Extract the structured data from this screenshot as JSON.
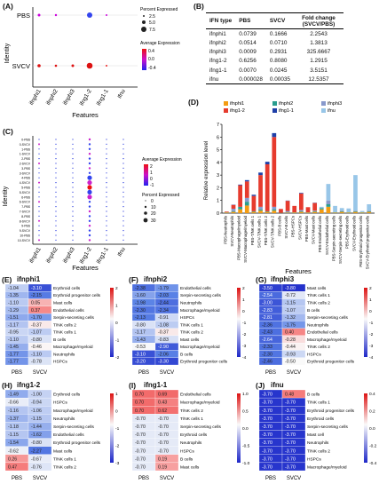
{
  "labels": {
    "A": "(A)",
    "B": "(B)",
    "C": "(C)",
    "D": "(D)",
    "E": "(E)",
    "F": "(F)",
    "G": "(G)",
    "H": "(H)",
    "I": "(I)",
    "J": "(J)"
  },
  "genes": [
    "ifnphi1",
    "ifnphi2",
    "ifnphi3",
    "ifng1-2",
    "ifng1-1",
    "ifnu"
  ],
  "panelA": {
    "y_axis_label": "Identity",
    "x_axis_label": "Features",
    "rows": [
      "PBS",
      "SVCV"
    ],
    "legend_pct_title": "Percent Expressed",
    "legend_pct_values": [
      "2.5",
      "5.0",
      "7.5"
    ],
    "legend_avg_title": "Average Expression",
    "legend_avg_ticks": [
      "0.4",
      "0.0",
      "-0.4"
    ]
  },
  "table_B": {
    "headers": [
      "IFN type",
      "PBS",
      "SVCV",
      "Fold change (SVCV/PBS)"
    ],
    "rows": [
      [
        "ifnphi1",
        "0.0739",
        "0.1666",
        "2.2543"
      ],
      [
        "ifnphi2",
        "0.0514",
        "0.0710",
        "1.3813"
      ],
      [
        "ifnphi3",
        "0.0009",
        "0.2931",
        "325.6667"
      ],
      [
        "ifng1-2",
        "0.6256",
        "0.8080",
        "1.2915"
      ],
      [
        "ifng1-1",
        "0.0070",
        "0.0245",
        "3.5151"
      ],
      [
        "ifnu",
        "0.000028",
        "0.00035",
        "12.5357"
      ]
    ]
  },
  "panelC": {
    "y_axis_label": "Identity",
    "x_axis_label": "Features",
    "legend_avg_title": "Average Expression",
    "legend_avg_ticks": [
      "2",
      "1",
      "0",
      "-1"
    ],
    "legend_pct_title": "Percent Expressed",
    "legend_pct_values": [
      "0",
      "10",
      "20",
      "30"
    ]
  },
  "chart_data": {
    "type": "bar",
    "ylabel": "Relative expression level",
    "xlabel": "Features",
    "ylim": [
      0,
      7
    ],
    "yticks": [
      0,
      1,
      2,
      3,
      4,
      5,
      6,
      7
    ],
    "legend": [
      "ifnphi1",
      "ifnphi2",
      "ifnphi3",
      "ifng1-2",
      "ifng1-1",
      "ifnu"
    ],
    "categories": [
      "PBS-Neutrophils",
      "SVCV-Neutrophils",
      "PBS-Macrophage/myeloid",
      "SVCV-Macrophage/myeloid",
      "PBS-T/NK cells 1",
      "SVCV-T/NK cells 1",
      "PBS-T/NK cells 2",
      "SVCV-T/NK cells 2",
      "PBS-B cells",
      "SVCV-B cells",
      "PBS-HSPCs",
      "SVCV-HSPCs",
      "PBS-Mast cells",
      "SVCV-Mast cells",
      "PBS-Endothelial cells",
      "SVCV-Endothelial cells",
      "PBS-Serpin-secreting cells",
      "SVCV-Serpin-secreting cells",
      "PBS-Erythroid cells",
      "SVCV-Erythroid cells",
      "PBS-Erythroid progenitor cells",
      "SVCV-Erythroid progenitor cells"
    ],
    "series": [
      {
        "name": "ifnphi1",
        "values": [
          0.05,
          0.1,
          0.3,
          0.6,
          0.1,
          0.2,
          0.1,
          0.2,
          0.02,
          0.05,
          0.05,
          0.1,
          0.05,
          0.1,
          0.3,
          0.5,
          0.05,
          0.1,
          0.05,
          0.1,
          0.05,
          0.1
        ]
      },
      {
        "name": "ifnphi2",
        "values": [
          0.02,
          0.05,
          0.2,
          0.3,
          0.05,
          0.1,
          0.05,
          0.1,
          0.01,
          0.02,
          0.02,
          0.05,
          0.02,
          0.05,
          0.1,
          0.2,
          0.02,
          0.05,
          0.02,
          0.05,
          0.02,
          0.05
        ]
      },
      {
        "name": "ifnphi3",
        "values": [
          0,
          0.2,
          0,
          0.3,
          0,
          0.2,
          0,
          0.2,
          0,
          0.1,
          0,
          0.1,
          0,
          0.05,
          0,
          0.3,
          0,
          0.05,
          0,
          0.05,
          0,
          0.05
        ]
      },
      {
        "name": "ifng1-2",
        "values": [
          0.05,
          0.3,
          1.7,
          1.3,
          1.2,
          2.5,
          3.7,
          5.5,
          0.3,
          0.8,
          0.5,
          1.3,
          0.4,
          0.6,
          0,
          0,
          0,
          0,
          0,
          0,
          0,
          0
        ]
      },
      {
        "name": "ifng1-1",
        "values": [
          0,
          0.02,
          0.05,
          0.1,
          0.1,
          0.2,
          0.2,
          0.3,
          0,
          0.02,
          0,
          0.05,
          0,
          0.02,
          0,
          0,
          0,
          0,
          0,
          0,
          0,
          0
        ]
      },
      {
        "name": "ifnu",
        "values": [
          0,
          0,
          0,
          0.02,
          0,
          0.02,
          0,
          0.02,
          0,
          0,
          0,
          0,
          0,
          0,
          0.1,
          1.3,
          0.5,
          0.2,
          0.3,
          2.8,
          0.1,
          0.5
        ]
      }
    ]
  },
  "heatmaps": [
    {
      "label": "(E)",
      "title": "ifnphi1",
      "cols": [
        "PBS",
        "SVCV"
      ],
      "ticks": [
        "2",
        "1",
        "0",
        "-1",
        "-2"
      ],
      "rows": [
        [
          "Erythroid cells",
          "-1.04",
          "-3.10"
        ],
        [
          "Erythroid progenitor cells",
          "-1.35",
          "-2.15"
        ],
        [
          "Mast cells",
          "-1.10",
          "0.05"
        ],
        [
          "Endothelial cells",
          "-1.29",
          "0.37"
        ],
        [
          "Serpin-secreting cells",
          "-1.51",
          "-1.70"
        ],
        [
          "T/NK cells 2",
          "-1.17",
          "-0.37"
        ],
        [
          "T/NK cells 1",
          "-0.95",
          "-1.07"
        ],
        [
          "B cells",
          "-1.10",
          "-0.80"
        ],
        [
          "Macrophage/myeloid",
          "-1.45",
          "-0.46"
        ],
        [
          "Neutrophils",
          "-1.77",
          "-1.10"
        ],
        [
          "HSPCs",
          "-1.77",
          "-0.78"
        ]
      ]
    },
    {
      "label": "(F)",
      "title": "ifnphi2",
      "cols": [
        "PBS",
        "SVCV"
      ],
      "ticks": [
        "2",
        "1",
        "0",
        "-1",
        "-2",
        "-3",
        "-4"
      ],
      "rows": [
        [
          "Endothelial cells",
          "-2.38",
          "-1.79"
        ],
        [
          "Serpin-secreting cells",
          "-1.60",
          "-2.03"
        ],
        [
          "Neutrophils",
          "-1.98",
          "-2.44"
        ],
        [
          "Macrophage/myeloid",
          "-2.30",
          "-2.34"
        ],
        [
          "HSPCs",
          "-2.13",
          "-0.91"
        ],
        [
          "T/NK cells 1",
          "-0.80",
          "-1.08"
        ],
        [
          "T/NK cells 2",
          "-1.17",
          "-0.37"
        ],
        [
          "Mast cells",
          "-1.43",
          "-0.83"
        ],
        [
          "Macrophage/myeloid",
          "-0.53",
          "-2.90"
        ],
        [
          "B cells",
          "-3.10",
          "-2.06"
        ],
        [
          "Erythroid progenitor cells",
          "-3.20",
          "-3.30"
        ]
      ]
    },
    {
      "label": "(G)",
      "title": "ifnphi3",
      "cols": [
        "PBS",
        "SVCV"
      ],
      "ticks": [
        "2",
        "1",
        "0",
        "-1",
        "-2",
        "-3",
        "-4"
      ],
      "rows": [
        [
          "Mast cells",
          "-3.50",
          "-3.80"
        ],
        [
          "T/NK cells 1",
          "-2.54",
          "-0.72"
        ],
        [
          "T/NK cells 2",
          "-3.00",
          "-1.15"
        ],
        [
          "B cells",
          "-2.83",
          "-1.07"
        ],
        [
          "Serpin-secreting cells",
          "-2.81",
          "-1.32"
        ],
        [
          "Neutrophils",
          "-2.36",
          "-1.75"
        ],
        [
          "Endothelial cells",
          "-2.43",
          "0.40"
        ],
        [
          "Macrophage/myeloid",
          "-2.64",
          "-0.28"
        ],
        [
          "T/NK cells 2",
          "-2.33",
          "-0.44"
        ],
        [
          "HSPCs",
          "-2.30",
          "-0.93"
        ],
        [
          "Erythroid progenitor cells",
          "-2.46",
          "-0.50"
        ]
      ]
    },
    {
      "label": "(H)",
      "title": "ifng1-2",
      "cols": [
        "PBS",
        "SVCV"
      ],
      "ticks": [
        "1",
        "0",
        "-1",
        "-2",
        "-3"
      ],
      "rows": [
        [
          "Erythroid cells",
          "-1.49",
          "-1.00"
        ],
        [
          "HSPCs",
          "-0.66",
          "-0.94"
        ],
        [
          "Macrophage/myeloid",
          "-1.16",
          "-1.06"
        ],
        [
          "Neutrophils",
          "-1.37",
          "-1.15"
        ],
        [
          "Serpin-secreting cells",
          "-1.18",
          "-1.44"
        ],
        [
          "Endothelial cells",
          "-1.15",
          "-1.62"
        ],
        [
          "Erythroid progenitor cells",
          "-1.54",
          "-0.80"
        ],
        [
          "Mast cells",
          "-0.62",
          "-2.27"
        ],
        [
          "T/NK cells 1",
          "0.26",
          "-0.67"
        ],
        [
          "T/NK cells 2",
          "0.47",
          "-0.76"
        ]
      ]
    },
    {
      "label": "(I)",
      "title": "ifng1-1",
      "cols": [
        "PBS",
        "SVCV"
      ],
      "ticks": [
        "1.0",
        "0.5",
        "0.0",
        "-0.5",
        "-1.0"
      ],
      "rows": [
        [
          "Endothelial cells",
          "0.70",
          "0.69"
        ],
        [
          "Macrophage/myeloid",
          "0.70",
          "0.43"
        ],
        [
          "T/NK cells 2",
          "0.70",
          "0.62"
        ],
        [
          "T/NK cells 1",
          "-0.70",
          "-0.70"
        ],
        [
          "Serpin-secreting cells",
          "-0.70",
          "-0.70"
        ],
        [
          "Erythroid cells",
          "-0.70",
          "-0.70"
        ],
        [
          "Neutrophils",
          "-0.70",
          "-0.70"
        ],
        [
          "HSPCs",
          "-0.70",
          "-0.70"
        ],
        [
          "B cells",
          "-0.70",
          "0.19"
        ],
        [
          "Mast cells",
          "-0.70",
          "0.19"
        ]
      ]
    },
    {
      "label": "(J)",
      "title": "ifnu",
      "cols": [
        "PBS",
        "SVCV"
      ],
      "ticks": [
        "0.4",
        "0.2",
        "0.0",
        "-0.2",
        "-0.4"
      ],
      "rows": [
        [
          "B cells",
          "-3.70",
          "0.48"
        ],
        [
          "T/NK cells 1",
          "-3.70",
          "-3.70"
        ],
        [
          "Erythroid progenitor cells",
          "-3.70",
          "-3.70"
        ],
        [
          "Erythroid cells",
          "-3.70",
          "-3.70"
        ],
        [
          "Serpin-secreting cells",
          "-3.70",
          "-3.70"
        ],
        [
          "Mast cell",
          "-3.70",
          "-3.70"
        ],
        [
          "Neutrophils",
          "-3.70",
          "-3.70"
        ],
        [
          "T/NK cells 2",
          "-3.70",
          "-3.70"
        ],
        [
          "HSPCs",
          "-3.70",
          "-3.70"
        ],
        [
          "Macrophage/myeloid",
          "-3.70",
          "-3.70"
        ]
      ]
    }
  ]
}
